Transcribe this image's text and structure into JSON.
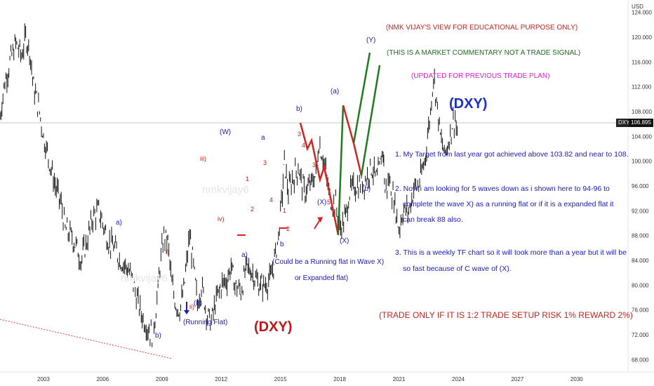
{
  "chart_data": {
    "type": "line",
    "currency": "USD",
    "instrument": "DXY",
    "last_price": "106.895",
    "y_ticks": [
      "124.000",
      "120.000",
      "116.000",
      "112.000",
      "108.000",
      "104.000",
      "100.000",
      "96.000",
      "92.000",
      "88.000",
      "84.000",
      "80.000",
      "76.000",
      "72.000",
      "68.000"
    ],
    "x_ticks": [
      "2003",
      "2006",
      "2009",
      "2012",
      "2015",
      "2018",
      "2021",
      "2024",
      "2027",
      "2030"
    ],
    "ylim": [
      66,
      126
    ],
    "xlim": [
      2000.8,
      2032.6
    ],
    "series": [
      {
        "values": [
          [
            2000.8,
            107
          ],
          [
            2001.0,
            112
          ],
          [
            2001.3,
            116
          ],
          [
            2001.6,
            119
          ],
          [
            2001.9,
            117
          ],
          [
            2002.1,
            120
          ],
          [
            2002.3,
            118
          ],
          [
            2002.5,
            112
          ],
          [
            2002.8,
            108
          ],
          [
            2003.0,
            104
          ],
          [
            2003.3,
            100
          ],
          [
            2003.6,
            96
          ],
          [
            2003.9,
            93
          ],
          [
            2004.1,
            89
          ],
          [
            2004.4,
            88
          ],
          [
            2004.7,
            86
          ],
          [
            2004.9,
            84
          ],
          [
            2005.2,
            87
          ],
          [
            2005.5,
            91
          ],
          [
            2005.8,
            92
          ],
          [
            2006.0,
            90
          ],
          [
            2006.3,
            87
          ],
          [
            2006.6,
            86
          ],
          [
            2006.9,
            84
          ],
          [
            2007.2,
            83
          ],
          [
            2007.5,
            81
          ],
          [
            2007.8,
            77
          ],
          [
            2008.0,
            75
          ],
          [
            2008.3,
            73
          ],
          [
            2008.5,
            72
          ],
          [
            2008.7,
            76
          ],
          [
            2008.9,
            83
          ],
          [
            2009.1,
            88
          ],
          [
            2009.3,
            87
          ],
          [
            2009.5,
            80
          ],
          [
            2009.7,
            77
          ],
          [
            2009.9,
            76
          ],
          [
            2010.1,
            79
          ],
          [
            2010.4,
            88
          ],
          [
            2010.6,
            83
          ],
          [
            2010.8,
            77
          ],
          [
            2011.0,
            80
          ],
          [
            2011.3,
            75
          ],
          [
            2011.5,
            74
          ],
          [
            2011.7,
            77
          ],
          [
            2012.0,
            80
          ],
          [
            2012.3,
            81
          ],
          [
            2012.5,
            83
          ],
          [
            2012.7,
            80
          ],
          [
            2013.0,
            79
          ],
          [
            2013.3,
            83
          ],
          [
            2013.6,
            82
          ],
          [
            2013.9,
            80
          ],
          [
            2014.2,
            80
          ],
          [
            2014.5,
            81
          ],
          [
            2014.7,
            84
          ],
          [
            2014.9,
            88
          ],
          [
            2015.1,
            95
          ],
          [
            2015.2,
            100
          ],
          [
            2015.4,
            95
          ],
          [
            2015.6,
            97
          ],
          [
            2015.9,
            99
          ],
          [
            2016.2,
            95
          ],
          [
            2016.5,
            96
          ],
          [
            2016.8,
            98
          ],
          [
            2016.95,
            103
          ],
          [
            2017.2,
            100
          ],
          [
            2017.5,
            94
          ],
          [
            2017.8,
            93
          ],
          [
            2018.0,
            89
          ],
          [
            2018.3,
            91
          ],
          [
            2018.5,
            95
          ],
          [
            2018.8,
            96
          ],
          [
            2019.0,
            96
          ],
          [
            2019.3,
            97
          ],
          [
            2019.6,
            99
          ],
          [
            2019.9,
            97
          ],
          [
            2020.2,
            102
          ],
          [
            2020.3,
            95
          ],
          [
            2020.5,
            97
          ],
          [
            2020.8,
            93
          ],
          [
            2021.0,
            89
          ],
          [
            2021.2,
            92
          ],
          [
            2021.5,
            92
          ],
          [
            2021.8,
            96
          ],
          [
            2022.0,
            96
          ],
          [
            2022.3,
            100
          ],
          [
            2022.6,
            108
          ],
          [
            2022.75,
            114
          ],
          [
            2022.9,
            110
          ],
          [
            2023.1,
            104
          ],
          [
            2023.3,
            101
          ],
          [
            2023.5,
            103
          ],
          [
            2023.7,
            106
          ],
          [
            2023.85,
            107
          ],
          [
            2024.0,
            103
          ]
        ]
      }
    ]
  },
  "header": {
    "line1": "(NMK VIJAY'S VIEW FOR EDUCATIONAL PURPOSE ONLY)",
    "line2": "(THIS IS A MARKET COMMENTARY NOT A TRADE SIGNAL)",
    "line3": "(UPDATED FOR PREVIOUS TRADE PLAN)",
    "title_blue": "(DXY)",
    "title_red": "(DXY)"
  },
  "notes": {
    "n1a": "1. My Target from last year got achieved above 103.82 and near to 108.",
    "n2a": "2. Now i am looking for 5 waves down as i shown here to 94-96 to",
    "n2b": "complete the wave X) as a running flat or if it is a expanded flat it",
    "n2c": "can break 88 also.",
    "n3a": "3. This is a weekly TF chart so it will took more than a year but it will be",
    "n3b": "so fast because of C wave of (X).",
    "trade": "(TRADE ONLY IF IT IS 1:2 TRADE SETUP RISK 1% REWARD 2%)",
    "running_flat_wave_x": "(Could be a Running flat in Wave X)",
    "expanded_flat": "or Expanded flat)",
    "running_flat": "(Running Flat)"
  },
  "labels": {
    "W": "(W)",
    "Y": "(Y)",
    "a_paren": "(a)",
    "b_paren": "(b)",
    "X_paren": "(X)",
    "X_mid": "(X)",
    "b_top": "b)",
    "a_small": "a)",
    "b_small": "b)",
    "a_low": "a)",
    "b_low": "b",
    "a_top": "a",
    "iii": "iii)",
    "iv": "iv)",
    "i_small": "i)",
    "ii_small": "ii)",
    "b_small2": "(b)",
    "n1": "1",
    "n2": "2",
    "n3": "3",
    "n4": "4",
    "n1b": "1",
    "n2b": "2",
    "n3b": "3",
    "n4b": "4",
    "n3c": "3",
    "n5": "5",
    "n3d": "3"
  },
  "watermark": "nmkvijay6"
}
